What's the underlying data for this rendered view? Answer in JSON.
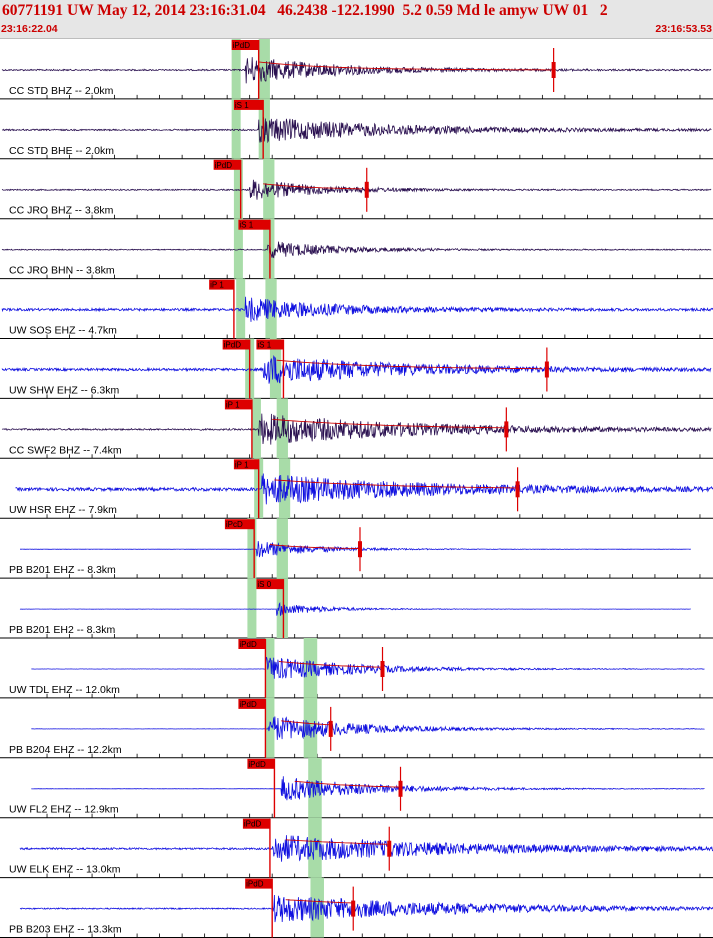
{
  "header": {
    "title": "60771191 UW May 12, 2014 23:16:31.04   46.2438 -122.1990  5.2 0.59 Md le amyw UW 01   2",
    "time_start": "23:16:22.04",
    "time_end": "23:16:53.53"
  },
  "colors": {
    "header_bg": "#e6e6e6",
    "header_text": "#cc0000",
    "trace_dark": "#2a1050",
    "trace_blue": "#1010e0",
    "pick": "#dd0000",
    "window": "#a8dca8",
    "coda": "#cc0000",
    "grid": "#000000"
  },
  "chart_data": {
    "type": "seismogram",
    "x_range_seconds": [
      0,
      31.49
    ],
    "traces": [
      {
        "label": "CC STD BHZ -- 2.0km",
        "color": "dark",
        "start": 0,
        "end": 31.5,
        "onset": 10.8,
        "amp": 14,
        "decay": 4,
        "noise": 0.7,
        "p_pick": "iPdD",
        "p_time": 10.2,
        "p_end": 11.4,
        "windows": [
          [
            10.2,
            10.6
          ],
          [
            11.4,
            11.9
          ]
        ],
        "coda_end": 24.5,
        "coda_marker": 24.5
      },
      {
        "label": "CC STD BHE -- 2.0km",
        "color": "dark",
        "start": 0,
        "end": 31.5,
        "onset": 11.4,
        "amp": 13,
        "decay": 6,
        "noise": 0.7,
        "p_pick": "iS 1",
        "p_time": 10.3,
        "p_end": 11.6,
        "windows": [
          [
            10.2,
            10.6
          ],
          [
            11.4,
            11.9
          ]
        ]
      },
      {
        "label": "CC JRO BHZ -- 3.8km",
        "color": "dark",
        "start": 0,
        "end": 31.5,
        "onset": 11.0,
        "amp": 11,
        "decay": 3,
        "noise": 0.6,
        "p_pick": "iPdD",
        "p_time": 9.4,
        "p_end": 10.6,
        "windows": [
          [
            10.3,
            10.7
          ],
          [
            11.6,
            12.1
          ]
        ],
        "coda_end": 16.0,
        "coda_marker": 16.2
      },
      {
        "label": "CC JRO BHN -- 3.8km",
        "color": "dark",
        "start": 0,
        "end": 31.5,
        "onset": 11.8,
        "amp": 9,
        "decay": 3,
        "noise": 0.5,
        "p_pick": "iS 1",
        "p_time": 10.5,
        "p_end": 11.9,
        "windows": [
          [
            10.3,
            10.7
          ],
          [
            11.6,
            12.1
          ]
        ]
      },
      {
        "label": "UW SOS EHZ -- 4.7km",
        "color": "blue",
        "start": 0,
        "end": 31.7,
        "onset": 10.8,
        "amp": 12,
        "decay": 4,
        "noise": 1.2,
        "p_pick": "iP 1",
        "p_time": 9.2,
        "p_end": 10.3,
        "windows": [
          [
            10.4,
            10.8
          ],
          [
            11.7,
            12.2
          ]
        ]
      },
      {
        "label": "UW SHW EHZ -- 6.3km",
        "color": "blue",
        "start": 0,
        "end": 31.5,
        "onset": 11.6,
        "amp": 15,
        "decay": 6,
        "noise": 1.2,
        "p_pick": "iPdD",
        "p_time": 9.8,
        "p_end": 11.0,
        "p2_pick": "iS 1",
        "p2_time": 11.3,
        "p2_end": 12.5,
        "windows": [
          [
            10.8,
            11.2
          ],
          [
            11.9,
            12.4
          ]
        ],
        "coda_end": 24.0,
        "coda_marker": 24.2
      },
      {
        "label": "CC SWF2 BHZ -- 7.4km",
        "color": "dark",
        "start": 0,
        "end": 31.5,
        "onset": 11.4,
        "amp": 16,
        "decay": 7,
        "noise": 0.8,
        "p_pick": "iP 1",
        "p_time": 9.9,
        "p_end": 11.1,
        "windows": [
          [
            11.1,
            11.5
          ],
          [
            12.2,
            12.7
          ]
        ],
        "coda_end": 22.4,
        "coda_marker": 22.4
      },
      {
        "label": "UW HSR EHZ -- 7.9km",
        "color": "blue",
        "start": 0.6,
        "end": 31.9,
        "onset": 11.5,
        "amp": 15,
        "decay": 7,
        "noise": 1.6,
        "p_pick": "iP 1",
        "p_time": 10.3,
        "p_end": 11.4,
        "windows": [
          [
            11.2,
            11.6
          ],
          [
            12.3,
            12.8
          ]
        ],
        "coda_end": 22.9,
        "coda_marker": 22.9
      },
      {
        "label": "PB B201 EHZ -- 8.3km",
        "color": "blue",
        "start": 0.8,
        "end": 30.6,
        "onset": 11.3,
        "amp": 9,
        "decay": 2.5,
        "noise": 0.15,
        "p_pick": "iPcD",
        "p_time": 9.9,
        "p_end": 11.2,
        "windows": [
          [
            10.9,
            11.3
          ],
          [
            12.2,
            12.7
          ]
        ],
        "coda_end": 15.9,
        "coda_marker": 15.9
      },
      {
        "label": "PB B201 EH2 -- 8.3km",
        "color": "blue",
        "start": 0.8,
        "end": 30.6,
        "onset": 12.2,
        "amp": 7,
        "decay": 2,
        "noise": 0.15,
        "p_pick": "iS 0",
        "p_time": 11.3,
        "p_end": 12.5,
        "windows": [
          [
            10.9,
            11.3
          ],
          [
            12.2,
            12.7
          ]
        ]
      },
      {
        "label": "UW TDL EHZ -- 12.0km",
        "color": "blue",
        "start": 1.3,
        "end": 31.2,
        "onset": 11.7,
        "amp": 13,
        "decay": 4,
        "noise": 0.15,
        "p_pick": "iPdD",
        "p_time": 10.5,
        "p_end": 11.7,
        "windows": [
          [
            11.7,
            12.1
          ],
          [
            13.4,
            14.0
          ]
        ],
        "coda_end": 16.9,
        "coda_marker": 16.9
      },
      {
        "label": "PB B204 EHZ -- 12.2km",
        "color": "blue",
        "start": 1.3,
        "end": 31.2,
        "onset": 11.8,
        "amp": 14,
        "decay": 4,
        "noise": 0.15,
        "p_pick": "iPdD",
        "p_time": 10.5,
        "p_end": 11.7,
        "windows": [
          [
            11.7,
            12.1
          ],
          [
            13.4,
            14.0
          ]
        ],
        "coda_end": 14.6,
        "coda_marker": 14.6
      },
      {
        "label": "UW FL2 EHZ -- 12.9km",
        "color": "blue",
        "start": 1.3,
        "end": 31.2,
        "onset": 12.4,
        "amp": 13,
        "decay": 4,
        "noise": 0.15,
        "p_pick": "iPdD",
        "p_time": 10.9,
        "p_end": 12.1,
        "windows": [
          [
            13.6,
            14.2
          ]
        ],
        "coda_end": 17.7,
        "coda_marker": 17.7
      },
      {
        "label": "UW ELK EHZ -- 13.0km",
        "color": "blue",
        "start": 0.8,
        "end": 31.6,
        "onset": 12.0,
        "amp": 14,
        "decay": 8,
        "noise": 0.9,
        "p_pick": "iPdD",
        "p_time": 10.7,
        "p_end": 11.9,
        "windows": [
          [
            13.6,
            14.2
          ]
        ],
        "coda_end": 17.2,
        "coda_marker": 17.2
      },
      {
        "label": "PB B203 EHZ -- 13.3km",
        "color": "blue",
        "start": 0.8,
        "end": 31.6,
        "onset": 12.0,
        "amp": 14,
        "decay": 8,
        "noise": 0.6,
        "p_pick": "iPdD",
        "p_time": 10.8,
        "p_end": 12.0,
        "windows": [
          [
            13.7,
            14.3
          ]
        ],
        "coda_end": 15.6,
        "coda_marker": 15.6
      }
    ]
  }
}
